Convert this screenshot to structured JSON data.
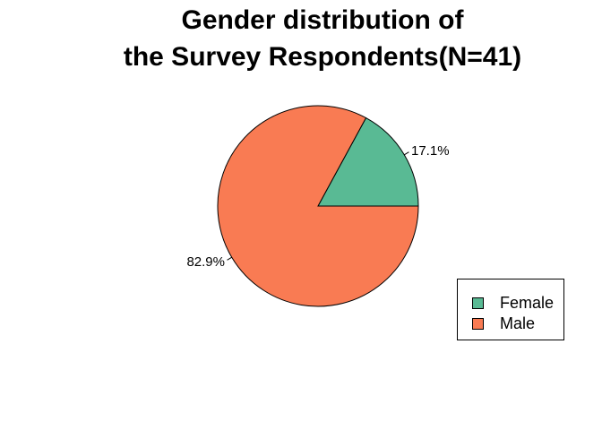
{
  "chart_data": {
    "type": "pie",
    "title_lines": [
      "Gender distribution of",
      "the Survey Respondents(N=41)"
    ],
    "categories": [
      "Female",
      "Male"
    ],
    "values": [
      7,
      34
    ],
    "percent_labels": [
      "17.1%",
      "82.9%"
    ],
    "colors": [
      "#59BA94",
      "#F97B53"
    ],
    "start_angle_deg": 0,
    "direction": "counterclockwise",
    "legend": {
      "position": "bottom-right",
      "items": [
        {
          "label": "Female",
          "color": "#59BA94"
        },
        {
          "label": "Male",
          "color": "#F97B53"
        }
      ]
    }
  }
}
